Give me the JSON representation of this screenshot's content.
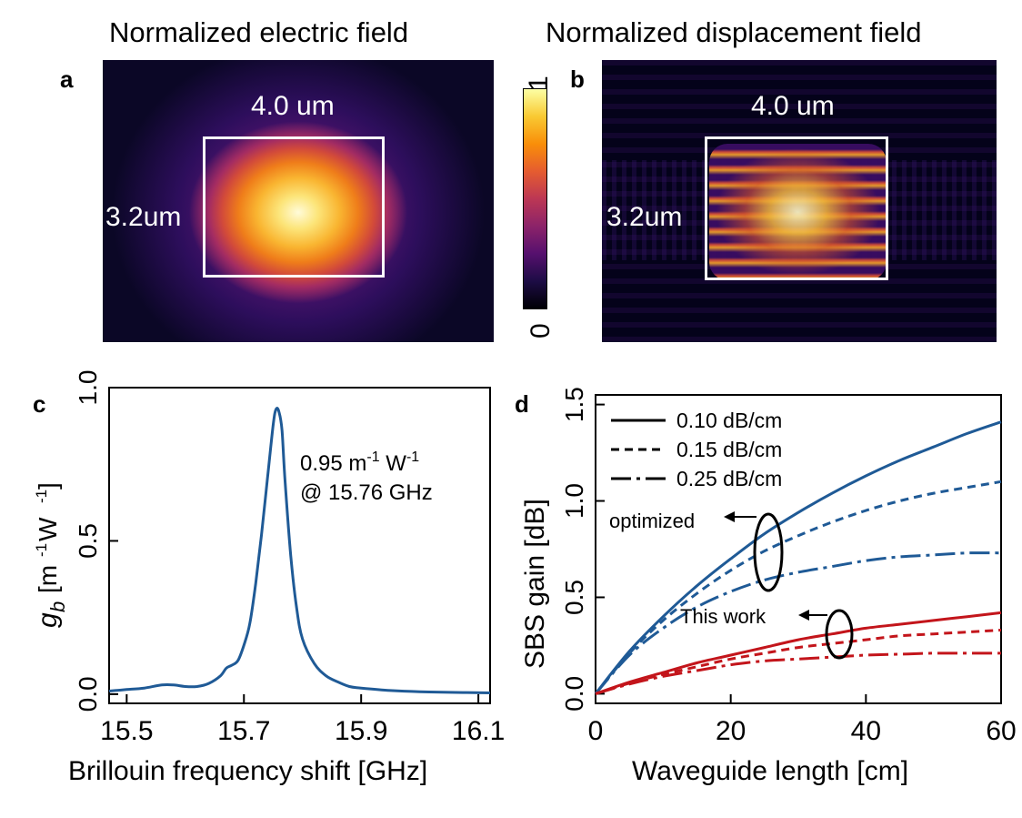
{
  "panel_a": {
    "letter": "a",
    "title": "Normalized electric field",
    "width_label": "4.0 um",
    "height_label": "3.2um"
  },
  "panel_b": {
    "letter": "b",
    "title": "Normalized displacement field",
    "width_label": "4.0 um",
    "height_label": "3.2um"
  },
  "colorbar": {
    "max_label": "1",
    "min_label": "0",
    "colors": [
      "#000004",
      "#1d0c45",
      "#56106e",
      "#8c2369",
      "#bc3754",
      "#e55c30",
      "#f98e09",
      "#f9c932",
      "#fcffa4"
    ]
  },
  "line_color": "#1f5a96",
  "red_color": "#c3151b",
  "chart_data": [
    {
      "id": "c",
      "type": "line",
      "letter": "c",
      "title": "",
      "xlabel": "Brillouin frequency shift [GHz]",
      "ylabel_symbol": "g",
      "ylabel_sub": "b",
      "ylabel_unit": "[m-1 W-1]",
      "xlim": [
        15.47,
        16.12
      ],
      "ylim": [
        -0.03,
        1.0
      ],
      "xticks": [
        15.5,
        15.7,
        15.9,
        16.1
      ],
      "xtick_labels": [
        "15.5",
        "15.7",
        "15.9",
        "16.1"
      ],
      "yticks": [
        0.0,
        0.5,
        1.0
      ],
      "ytick_labels": [
        "0.0",
        "0.5",
        "1.0"
      ],
      "annotation_line1": "0.95 m-1 W-1",
      "annotation_line2": "@ 15.76 GHz",
      "series": [
        {
          "name": "gb",
          "x": [
            15.47,
            15.5,
            15.53,
            15.56,
            15.58,
            15.6,
            15.62,
            15.64,
            15.66,
            15.67,
            15.68,
            15.69,
            15.7,
            15.71,
            15.72,
            15.73,
            15.74,
            15.75,
            15.755,
            15.76,
            15.765,
            15.77,
            15.78,
            15.79,
            15.8,
            15.82,
            15.84,
            15.86,
            15.88,
            15.9,
            15.95,
            16.0,
            16.05,
            16.12
          ],
          "y": [
            0.01,
            0.015,
            0.02,
            0.03,
            0.03,
            0.025,
            0.025,
            0.035,
            0.06,
            0.085,
            0.095,
            0.11,
            0.16,
            0.23,
            0.36,
            0.52,
            0.7,
            0.88,
            0.93,
            0.92,
            0.86,
            0.7,
            0.45,
            0.28,
            0.18,
            0.1,
            0.06,
            0.04,
            0.025,
            0.02,
            0.012,
            0.008,
            0.006,
            0.004
          ]
        }
      ]
    },
    {
      "id": "d",
      "type": "line",
      "letter": "d",
      "title": "",
      "xlabel": "Waveguide length [cm]",
      "ylabel": "SBS gain [dB]",
      "xlim": [
        0,
        60
      ],
      "ylim": [
        -0.05,
        1.55
      ],
      "xticks": [
        0,
        20,
        40,
        60
      ],
      "xtick_labels": [
        "0",
        "20",
        "40",
        "60"
      ],
      "yticks": [
        0.0,
        0.5,
        1.0,
        1.5
      ],
      "ytick_labels": [
        "0.0",
        "0.5",
        "1.0",
        "1.5"
      ],
      "legend": [
        "0.10 dB/cm",
        "0.15 dB/cm",
        "0.25 dB/cm"
      ],
      "annotation_optimized": "optimized",
      "annotation_this_work": "This work",
      "series": [
        {
          "name": "optimized 0.10 dB/cm",
          "group": "optimized",
          "style": "solid",
          "x": [
            0,
            5,
            10,
            15,
            20,
            25,
            30,
            35,
            40,
            45,
            50,
            55,
            60
          ],
          "y": [
            0,
            0.22,
            0.4,
            0.56,
            0.7,
            0.83,
            0.94,
            1.04,
            1.13,
            1.21,
            1.28,
            1.35,
            1.41
          ]
        },
        {
          "name": "optimized 0.15 dB/cm",
          "group": "optimized",
          "style": "dashed",
          "x": [
            0,
            5,
            10,
            15,
            20,
            25,
            30,
            35,
            40,
            45,
            50,
            55,
            60
          ],
          "y": [
            0,
            0.21,
            0.38,
            0.52,
            0.64,
            0.74,
            0.82,
            0.89,
            0.95,
            1.0,
            1.04,
            1.07,
            1.1
          ]
        },
        {
          "name": "optimized 0.25 dB/cm",
          "group": "optimized",
          "style": "dashdot",
          "x": [
            0,
            5,
            10,
            15,
            20,
            25,
            30,
            35,
            40,
            45,
            50,
            55,
            60
          ],
          "y": [
            0,
            0.2,
            0.34,
            0.45,
            0.53,
            0.59,
            0.63,
            0.66,
            0.69,
            0.71,
            0.72,
            0.73,
            0.73
          ]
        },
        {
          "name": "This work 0.10 dB/cm",
          "group": "this-work",
          "style": "solid",
          "x": [
            0,
            5,
            10,
            15,
            20,
            25,
            30,
            35,
            40,
            45,
            50,
            55,
            60
          ],
          "y": [
            0,
            0.06,
            0.11,
            0.16,
            0.2,
            0.24,
            0.28,
            0.31,
            0.34,
            0.36,
            0.38,
            0.4,
            0.42
          ]
        },
        {
          "name": "This work 0.15 dB/cm",
          "group": "this-work",
          "style": "dashed",
          "x": [
            0,
            5,
            10,
            15,
            20,
            25,
            30,
            35,
            40,
            45,
            50,
            55,
            60
          ],
          "y": [
            0,
            0.055,
            0.1,
            0.14,
            0.18,
            0.21,
            0.24,
            0.26,
            0.28,
            0.3,
            0.31,
            0.32,
            0.33
          ]
        },
        {
          "name": "This work 0.25 dB/cm",
          "group": "this-work",
          "style": "dashdot",
          "x": [
            0,
            5,
            10,
            15,
            20,
            25,
            30,
            35,
            40,
            45,
            50,
            55,
            60
          ],
          "y": [
            0,
            0.05,
            0.09,
            0.12,
            0.15,
            0.17,
            0.18,
            0.19,
            0.2,
            0.205,
            0.21,
            0.21,
            0.21
          ]
        }
      ]
    }
  ]
}
